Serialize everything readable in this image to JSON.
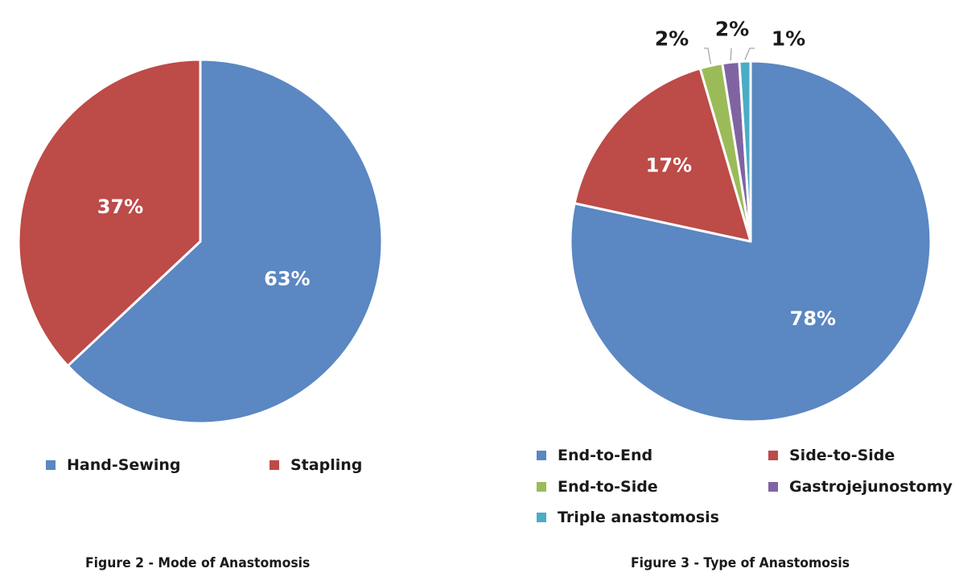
{
  "chart_data": [
    {
      "type": "pie",
      "title": "",
      "categories": [
        "Hand-Sewing",
        "Stapling"
      ],
      "values": [
        63,
        37
      ],
      "data_labels": [
        "63%",
        "37%"
      ],
      "colors": [
        "#5b87c2",
        "#bd4b48"
      ],
      "legend": "bottom",
      "caption": "Figure 2 - Mode of Anastomosis"
    },
    {
      "type": "pie",
      "title": "",
      "categories": [
        "End-to-End",
        "Side-to-Side",
        "End-to-Side",
        "Gastrojejunostomy",
        "Triple anastomosis"
      ],
      "values": [
        78,
        17,
        2,
        1.5,
        1
      ],
      "data_labels": [
        "78%",
        "17%",
        "2%",
        "2%",
        "1%"
      ],
      "colors": [
        "#5b87c2",
        "#bd4b48",
        "#9bbb59",
        "#8064a2",
        "#4bacc6"
      ],
      "legend": "bottom",
      "caption": "Figure 3 - Type of Anastomosis"
    }
  ]
}
